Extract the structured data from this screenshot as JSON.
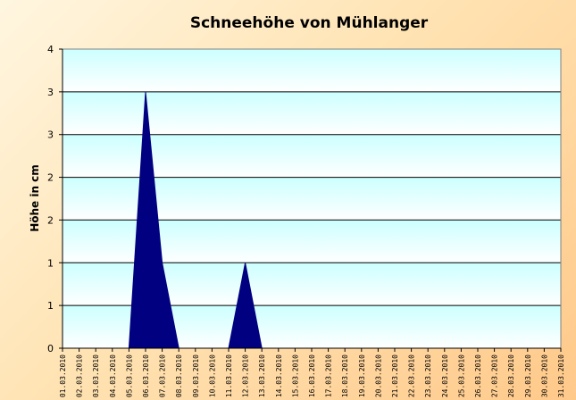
{
  "chart_data": {
    "type": "area",
    "title": "Schneehöhe von Mühlanger",
    "xlabel": "",
    "ylabel": "Höhe in cm",
    "ylim": [
      0,
      3.5
    ],
    "ytick_labels": [
      "0",
      "1",
      "1",
      "2",
      "2",
      "3",
      "3",
      "4"
    ],
    "grid": true,
    "legend": "none",
    "colors": {
      "fill": "#000080",
      "plot_bg_light": "#ccffff",
      "plot_bg_white": "#ffffff",
      "grid": "#000000"
    },
    "categories": [
      "01.03.2010",
      "02.03.2010",
      "03.03.2010",
      "04.03.2010",
      "05.03.2010",
      "06.03.2010",
      "07.03.2010",
      "08.03.2010",
      "09.03.2010",
      "10.03.2010",
      "11.03.2010",
      "12.03.2010",
      "13.03.2010",
      "14.03.2010",
      "15.03.2010",
      "16.03.2010",
      "17.03.2010",
      "18.03.2010",
      "19.03.2010",
      "20.03.2010",
      "21.03.2010",
      "22.03.2010",
      "23.03.2010",
      "24.03.2010",
      "25.03.2010",
      "26.03.2010",
      "27.03.2010",
      "28.03.2010",
      "29.03.2010",
      "30.03.2010",
      "31.03.2010"
    ],
    "values": [
      0,
      0,
      0,
      0,
      0,
      3,
      1,
      0,
      0,
      0,
      0,
      1,
      0,
      0,
      0,
      0,
      0,
      0,
      0,
      0,
      0,
      0,
      0,
      0,
      0,
      0,
      0,
      0,
      0,
      0,
      0
    ]
  }
}
